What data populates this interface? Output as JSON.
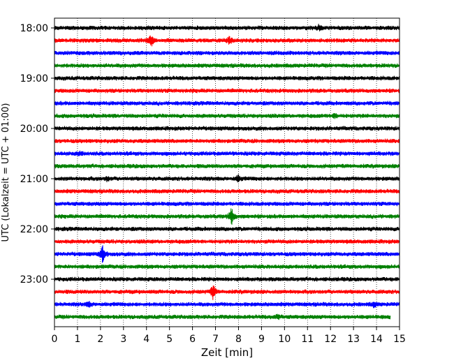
{
  "chart_data": {
    "type": "line",
    "title": "",
    "xlabel": "Zeit  [min]",
    "ylabel": "UTC (Lokalzeit = UTC + 01:00)",
    "xlim": [
      0,
      15
    ],
    "x_ticks": [
      "0",
      "1",
      "2",
      "3",
      "4",
      "5",
      "6",
      "7",
      "8",
      "9",
      "10",
      "11",
      "12",
      "13",
      "14",
      "15"
    ],
    "y_ticks": [
      "18:00",
      "19:00",
      "20:00",
      "21:00",
      "22:00",
      "23:00"
    ],
    "grid": "vertical dotted lines at each minute",
    "trace_colors": [
      "#000000",
      "#ff0000",
      "#0000ff",
      "#008000"
    ],
    "traces": [
      {
        "start": "18:00",
        "color": "#000000",
        "events": [
          {
            "t": 11.5,
            "amp": 0.4
          }
        ]
      },
      {
        "start": "18:15",
        "color": "#ff0000",
        "events": [
          {
            "t": 4.2,
            "amp": 0.9
          },
          {
            "t": 7.6,
            "amp": 0.5
          }
        ]
      },
      {
        "start": "18:30",
        "color": "#0000ff",
        "events": []
      },
      {
        "start": "18:45",
        "color": "#008000",
        "events": []
      },
      {
        "start": "19:00",
        "color": "#000000",
        "events": []
      },
      {
        "start": "19:15",
        "color": "#ff0000",
        "events": []
      },
      {
        "start": "19:30",
        "color": "#0000ff",
        "events": []
      },
      {
        "start": "19:45",
        "color": "#008000",
        "events": [
          {
            "t": 12.2,
            "amp": 0.3
          }
        ]
      },
      {
        "start": "20:00",
        "color": "#000000",
        "events": []
      },
      {
        "start": "20:15",
        "color": "#ff0000",
        "events": []
      },
      {
        "start": "20:30",
        "color": "#0000ff",
        "events": [
          {
            "t": 1.1,
            "amp": 0.3
          }
        ]
      },
      {
        "start": "20:45",
        "color": "#008000",
        "events": []
      },
      {
        "start": "21:00",
        "color": "#000000",
        "events": [
          {
            "t": 8.0,
            "amp": 0.45
          },
          {
            "t": 2.3,
            "amp": 0.3
          }
        ]
      },
      {
        "start": "21:15",
        "color": "#ff0000",
        "events": []
      },
      {
        "start": "21:30",
        "color": "#0000ff",
        "events": []
      },
      {
        "start": "21:45",
        "color": "#008000",
        "events": [
          {
            "t": 7.7,
            "amp": 1.3
          }
        ]
      },
      {
        "start": "22:00",
        "color": "#000000",
        "events": []
      },
      {
        "start": "22:15",
        "color": "#ff0000",
        "events": []
      },
      {
        "start": "22:30",
        "color": "#0000ff",
        "events": [
          {
            "t": 2.1,
            "amp": 1.3
          }
        ]
      },
      {
        "start": "22:45",
        "color": "#008000",
        "events": []
      },
      {
        "start": "23:00",
        "color": "#000000",
        "events": []
      },
      {
        "start": "23:15",
        "color": "#ff0000",
        "events": [
          {
            "t": 6.9,
            "amp": 1.1
          }
        ]
      },
      {
        "start": "23:30",
        "color": "#0000ff",
        "events": [
          {
            "t": 1.5,
            "amp": 0.35
          },
          {
            "t": 13.9,
            "amp": 0.35
          }
        ]
      },
      {
        "start": "23:45",
        "color": "#008000",
        "end_t": 14.6,
        "events": [
          {
            "t": 9.7,
            "amp": 0.35
          }
        ]
      }
    ]
  }
}
